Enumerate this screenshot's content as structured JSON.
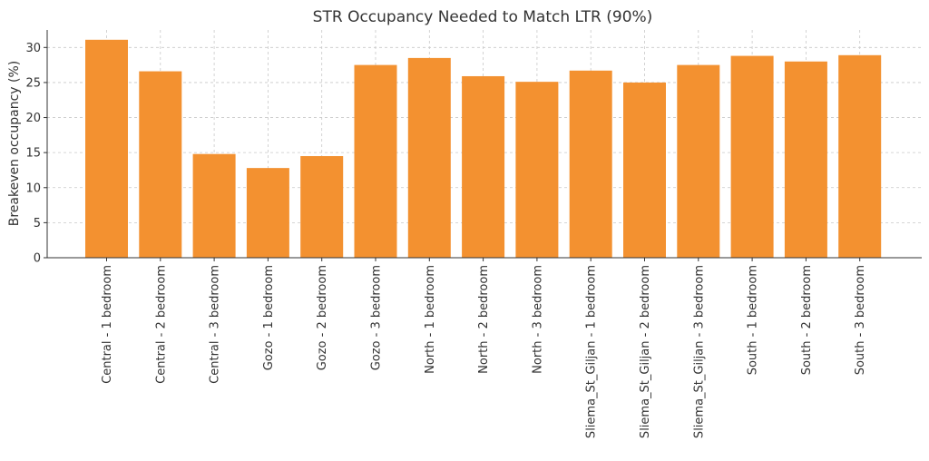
{
  "chart_data": {
    "type": "bar",
    "title": "STR Occupancy Needed to Match LTR (90%)",
    "xlabel": "",
    "ylabel": "Breakeven occupancy (%)",
    "ylim": [
      0,
      32.5
    ],
    "yticks": [
      0,
      5,
      10,
      15,
      20,
      25,
      30
    ],
    "grid": true,
    "bar_color": "#f39130",
    "categories": [
      "Central - 1 bedroom",
      "Central - 2 bedroom",
      "Central - 3 bedroom",
      "Gozo - 1 bedroom",
      "Gozo - 2 bedroom",
      "Gozo - 3 bedroom",
      "North - 1 bedroom",
      "North - 2 bedroom",
      "North - 3 bedroom",
      "Sliema_St_Giljan - 1 bedroom",
      "Sliema_St_Giljan - 2 bedroom",
      "Sliema_St_Giljan - 3 bedroom",
      "South - 1 bedroom",
      "South - 2 bedroom",
      "South - 3 bedroom"
    ],
    "values": [
      31.1,
      26.6,
      14.8,
      12.8,
      14.5,
      27.5,
      28.5,
      25.9,
      25.1,
      26.7,
      25.0,
      27.5,
      28.8,
      28.0,
      28.9
    ]
  }
}
